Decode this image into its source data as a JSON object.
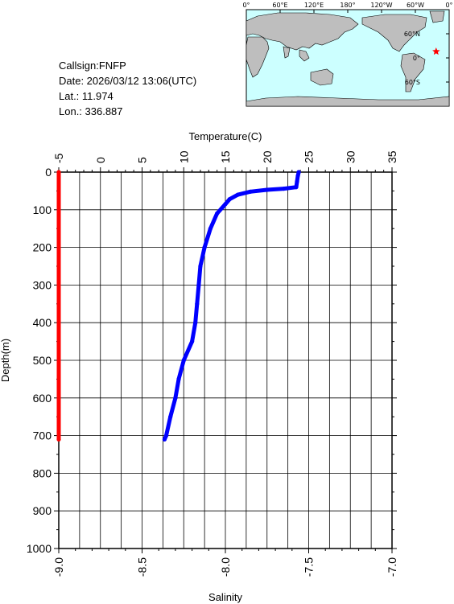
{
  "info": {
    "callsign": "Callsign:FNFP",
    "date": "Date:  2026/03/12 13:06(UTC)",
    "lat": "Lat.:  11.974",
    "lon": "Lon.:  336.887"
  },
  "map": {
    "top_labels": [
      "0°",
      "60°E",
      "120°E",
      "180°",
      "120°W",
      "60°W",
      "0°"
    ],
    "right_labels": [
      "60°N",
      "0°",
      "60°S"
    ],
    "ocean_color": "#ccffff",
    "land_color": "#bebebe",
    "station_marker": "red-star",
    "station": {
      "lon": 336.887,
      "lat": 11.974
    }
  },
  "chart_data": {
    "type": "line",
    "y": {
      "label": "Depth(m)",
      "range": [
        0,
        1000
      ],
      "ticks": [
        "0",
        "100",
        "200",
        "300",
        "400",
        "500",
        "600",
        "700",
        "800",
        "900",
        "1000"
      ],
      "reversed": true
    },
    "x_top": {
      "label": "Temperature(C)",
      "range": [
        -5,
        35
      ],
      "ticks": [
        "-5",
        "0",
        "5",
        "10",
        "15",
        "20",
        "25",
        "30",
        "35"
      ]
    },
    "x_bottom": {
      "label": "Salinity",
      "range": [
        -9.0,
        -7.0
      ],
      "ticks": [
        "-9.0",
        "-8.5",
        "-8.0",
        "-7.5",
        "-7.0"
      ]
    },
    "grid": true,
    "series": [
      {
        "axis": "temperature",
        "color": "#0000ff",
        "points": [
          {
            "x": 23.8,
            "y": 0
          },
          {
            "x": 23.7,
            "y": 10
          },
          {
            "x": 23.6,
            "y": 25
          },
          {
            "x": 23.5,
            "y": 40
          },
          {
            "x": 22.0,
            "y": 44
          },
          {
            "x": 20.0,
            "y": 47
          },
          {
            "x": 18.0,
            "y": 52
          },
          {
            "x": 16.5,
            "y": 60
          },
          {
            "x": 15.5,
            "y": 72
          },
          {
            "x": 15.0,
            "y": 85
          },
          {
            "x": 14.0,
            "y": 110
          },
          {
            "x": 13.2,
            "y": 150
          },
          {
            "x": 12.5,
            "y": 200
          },
          {
            "x": 12.0,
            "y": 250
          },
          {
            "x": 11.8,
            "y": 300
          },
          {
            "x": 11.6,
            "y": 350
          },
          {
            "x": 11.4,
            "y": 400
          },
          {
            "x": 11.0,
            "y": 450
          },
          {
            "x": 10.0,
            "y": 500
          },
          {
            "x": 9.4,
            "y": 550
          },
          {
            "x": 9.0,
            "y": 600
          },
          {
            "x": 8.4,
            "y": 650
          },
          {
            "x": 7.9,
            "y": 700
          },
          {
            "x": 7.7,
            "y": 710
          }
        ]
      },
      {
        "axis": "salinity",
        "color": "#ff0000",
        "points": [
          {
            "x": -9.0,
            "y": 0
          },
          {
            "x": -9.0,
            "y": 710
          }
        ]
      }
    ]
  }
}
